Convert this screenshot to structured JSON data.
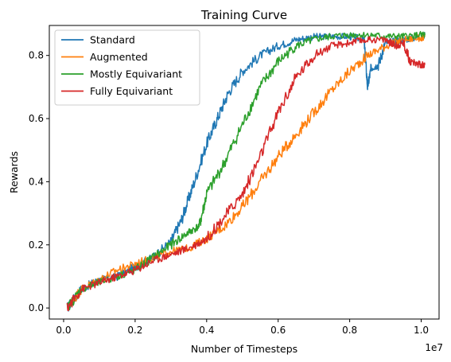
{
  "chart_data": {
    "type": "line",
    "title": "Training Curve",
    "xlabel": "Number of Timesteps",
    "ylabel": "Rewards",
    "x_offset_label": "1e7",
    "xlim": [
      -0.04,
      1.05
    ],
    "ylim": [
      -0.035,
      0.895
    ],
    "xticks": [
      0.0,
      0.2,
      0.4,
      0.6,
      0.8,
      1.0
    ],
    "xtick_labels": [
      "0.0",
      "0.2",
      "0.4",
      "0.6",
      "0.8",
      "1.0"
    ],
    "yticks": [
      0.0,
      0.2,
      0.4,
      0.6,
      0.8
    ],
    "ytick_labels": [
      "0.0",
      "0.2",
      "0.4",
      "0.6",
      "0.8"
    ],
    "legend_position": "top-left",
    "grid": false,
    "series": [
      {
        "name": "Standard",
        "color": "#1f77b4",
        "x": [
          0.01,
          0.05,
          0.1,
          0.15,
          0.2,
          0.25,
          0.3,
          0.33,
          0.36,
          0.4,
          0.43,
          0.46,
          0.5,
          0.55,
          0.6,
          0.65,
          0.7,
          0.75,
          0.8,
          0.84,
          0.85,
          0.86,
          0.88,
          0.9,
          0.95,
          1.0,
          1.01
        ],
        "y": [
          0.0,
          0.06,
          0.09,
          0.1,
          0.13,
          0.16,
          0.21,
          0.28,
          0.38,
          0.52,
          0.6,
          0.68,
          0.75,
          0.8,
          0.83,
          0.85,
          0.86,
          0.86,
          0.86,
          0.85,
          0.7,
          0.76,
          0.77,
          0.84,
          0.85,
          0.86,
          0.865
        ]
      },
      {
        "name": "Augmented",
        "color": "#ff7f0e",
        "x": [
          0.01,
          0.05,
          0.1,
          0.15,
          0.2,
          0.25,
          0.3,
          0.35,
          0.4,
          0.45,
          0.5,
          0.55,
          0.6,
          0.65,
          0.7,
          0.75,
          0.8,
          0.85,
          0.9,
          0.95,
          1.0,
          1.01
        ],
        "y": [
          0.0,
          0.06,
          0.09,
          0.12,
          0.14,
          0.16,
          0.18,
          0.19,
          0.22,
          0.26,
          0.32,
          0.4,
          0.48,
          0.55,
          0.62,
          0.69,
          0.75,
          0.8,
          0.83,
          0.85,
          0.855,
          0.86
        ]
      },
      {
        "name": "Mostly Equivariant",
        "color": "#2ca02c",
        "x": [
          0.01,
          0.05,
          0.1,
          0.15,
          0.2,
          0.25,
          0.3,
          0.35,
          0.38,
          0.4,
          0.45,
          0.5,
          0.55,
          0.6,
          0.65,
          0.7,
          0.75,
          0.8,
          0.85,
          0.9,
          0.95,
          1.0,
          1.01
        ],
        "y": [
          0.0,
          0.06,
          0.08,
          0.1,
          0.12,
          0.16,
          0.2,
          0.24,
          0.26,
          0.36,
          0.46,
          0.58,
          0.7,
          0.78,
          0.83,
          0.85,
          0.86,
          0.865,
          0.865,
          0.86,
          0.86,
          0.865,
          0.865
        ]
      },
      {
        "name": "Fully Equivariant",
        "color": "#d62728",
        "x": [
          0.01,
          0.05,
          0.1,
          0.15,
          0.2,
          0.25,
          0.3,
          0.35,
          0.4,
          0.45,
          0.5,
          0.55,
          0.6,
          0.65,
          0.7,
          0.75,
          0.8,
          0.85,
          0.9,
          0.93,
          0.95,
          0.97,
          1.0,
          1.01
        ],
        "y": [
          0.0,
          0.06,
          0.08,
          0.1,
          0.12,
          0.15,
          0.17,
          0.19,
          0.22,
          0.29,
          0.36,
          0.48,
          0.62,
          0.73,
          0.8,
          0.83,
          0.84,
          0.85,
          0.85,
          0.83,
          0.84,
          0.78,
          0.77,
          0.77
        ]
      }
    ]
  }
}
